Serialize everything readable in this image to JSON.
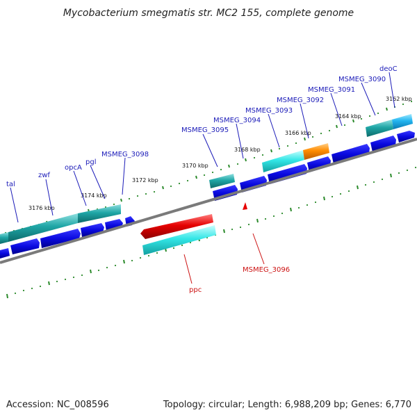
{
  "title": "Mycobacterium smegmatis str. MC2 155, complete genome",
  "footer": {
    "accession": "Accession: NC_008596",
    "topology": "Topology: circular; Length: 6,988,209 bp; Genes: 6,770"
  },
  "scale_labels": [
    "3176 kbp",
    "3174 kbp",
    "3172 kbp",
    "3170 kbp",
    "3168 kbp",
    "3166 kbp",
    "3164 kbp",
    "3162 kbp"
  ],
  "forward_gene_labels": [
    "tal",
    "zwf",
    "opcA",
    "pgl",
    "MSMEG_3098",
    "MSMEG_3095",
    "MSMEG_3094",
    "MSMEG_3093",
    "MSMEG_3092",
    "MSMEG_3091",
    "MSMEG_3090",
    "deoC"
  ],
  "reverse_gene_labels": [
    "ppc",
    "MSMEG_3096"
  ],
  "colors": {
    "forward_cds": "#0a0ae0",
    "teal_gene": "#1fa6a6",
    "cyan_gene": "#33e6e6",
    "orange_gene": "#ff8c00",
    "red_gene": "#e60000",
    "ticks": "#2b8a2b",
    "backbone": "#7a7a7a",
    "forward_label": "#1a1ab8",
    "reverse_label": "#cc1111"
  }
}
